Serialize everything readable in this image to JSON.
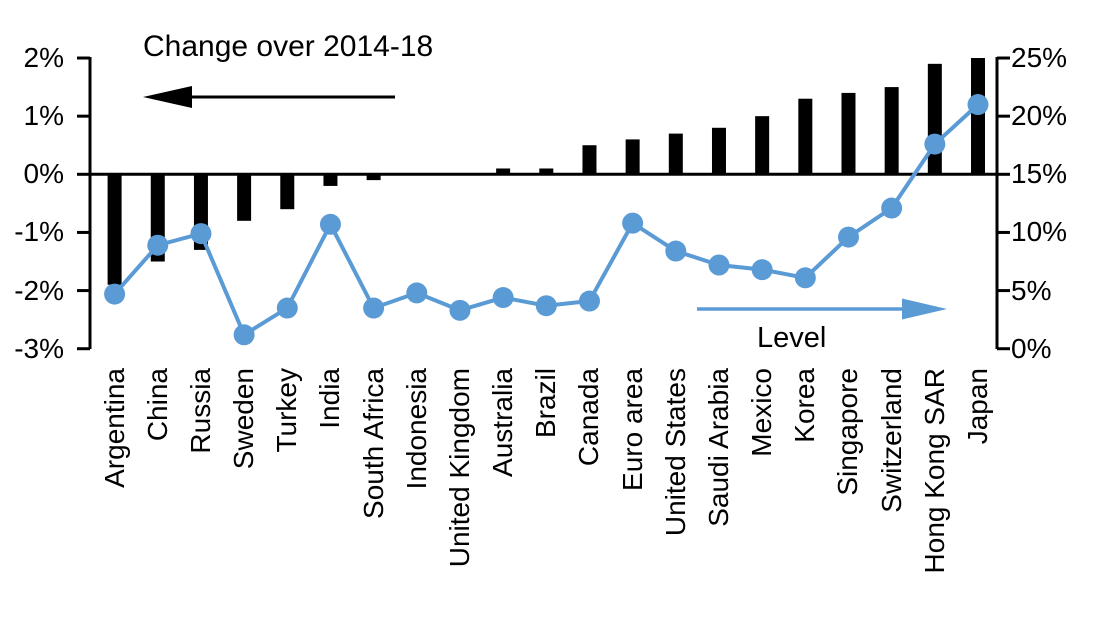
{
  "chart": {
    "title_left": "Change over 2014-18",
    "label_right": "Level",
    "colors": {
      "bar": "#000000",
      "line": "#5b9bd5",
      "background": "#ffffff"
    }
  },
  "chart_data": {
    "type": "combo_bar_line_dual_axis",
    "categories": [
      "Argentina",
      "China",
      "Russia",
      "Sweden",
      "Turkey",
      "India",
      "South Africa",
      "Indonesia",
      "United Kingdom",
      "Australia",
      "Brazil",
      "Canada",
      "Euro area",
      "United States",
      "Saudi Arabia",
      "Mexico",
      "Korea",
      "Singapore",
      "Switzerland",
      "Hong Kong SAR",
      "Japan"
    ],
    "series": [
      {
        "name": "Change over 2014-18",
        "type": "bar",
        "axis": "left",
        "color": "#000000",
        "values": [
          -1.9,
          -1.5,
          -1.3,
          -0.8,
          -0.6,
          -0.2,
          -0.1,
          0,
          0,
          0.1,
          0.1,
          0.5,
          0.6,
          0.7,
          0.8,
          1.0,
          1.3,
          1.4,
          1.5,
          1.9,
          2.0
        ]
      },
      {
        "name": "Level",
        "type": "line",
        "axis": "right",
        "color": "#5b9bd5",
        "values": [
          4.7,
          8.9,
          9.9,
          1.2,
          3.5,
          10.7,
          3.5,
          4.8,
          3.3,
          4.4,
          3.7,
          4.1,
          10.8,
          8.4,
          7.2,
          6.8,
          6.1,
          9.6,
          12.1,
          17.6,
          21.0
        ]
      }
    ],
    "left_axis": {
      "unit": "%",
      "min": -3,
      "max": 2,
      "tick_step": 1,
      "tick_labels": [
        "2%",
        "1%",
        "0%",
        "-1%",
        "-2%",
        "-3%"
      ],
      "tick_values": [
        2,
        1,
        0,
        -1,
        -2,
        -3
      ]
    },
    "right_axis": {
      "unit": "%",
      "min": 0,
      "max": 25,
      "tick_step": 5,
      "tick_labels": [
        "25%",
        "20%",
        "15%",
        "10%",
        "5%",
        "0%"
      ],
      "tick_values": [
        25,
        20,
        15,
        10,
        5,
        0
      ]
    },
    "annotations": [
      {
        "text": "Change over 2014-18",
        "arrow_direction": "left",
        "color": "#000000"
      },
      {
        "text": "Level",
        "arrow_direction": "right",
        "color": "#5b9bd5"
      }
    ],
    "grid": false,
    "legend": "none"
  }
}
